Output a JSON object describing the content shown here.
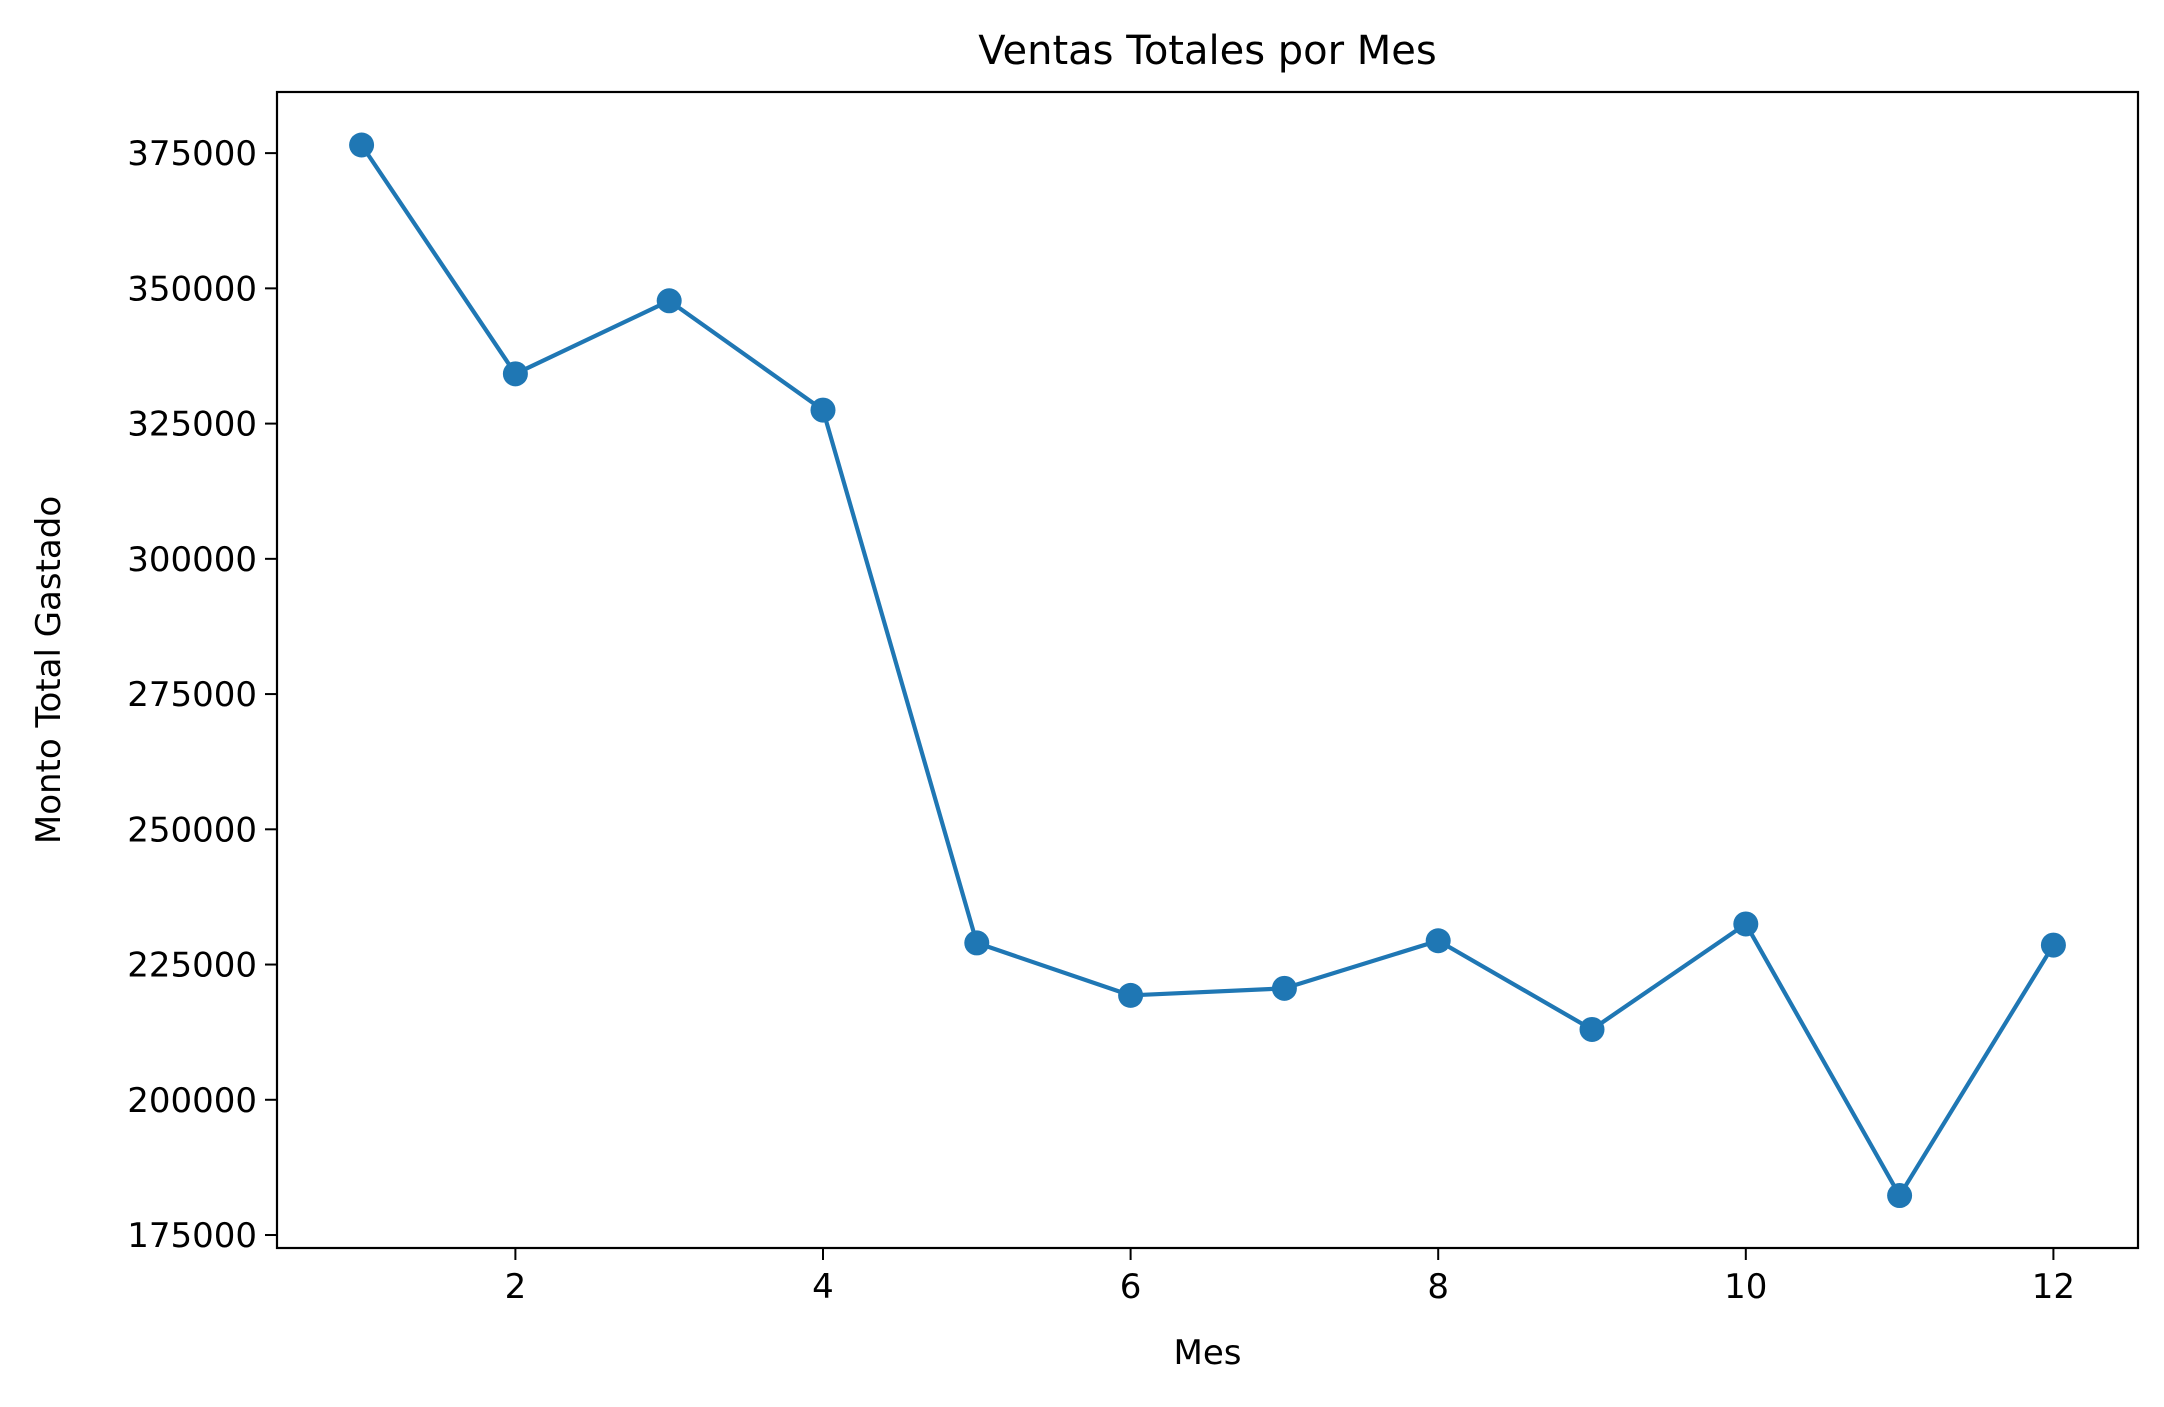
{
  "chart_data": {
    "type": "line",
    "title": "Ventas Totales por Mes",
    "xlabel": "Mes",
    "ylabel": "Monto Total Gastado",
    "x": [
      1,
      2,
      3,
      4,
      5,
      6,
      7,
      8,
      9,
      10,
      11,
      12
    ],
    "series": [
      {
        "values": [
          376500,
          334200,
          347700,
          327500,
          229000,
          219300,
          220600,
          229400,
          213000,
          232500,
          182300,
          228600
        ],
        "color": "#1f77b4",
        "marker": "circle"
      }
    ],
    "xlim": [
      0.45,
      12.55
    ],
    "ylim": [
      172600,
      386300
    ],
    "xticks": [
      2,
      4,
      6,
      8,
      10,
      12
    ],
    "xtick_labels": [
      "2",
      "4",
      "6",
      "8",
      "10",
      "12"
    ],
    "yticks": [
      175000,
      200000,
      225000,
      250000,
      275000,
      300000,
      325000,
      350000,
      375000
    ],
    "ytick_labels": [
      "175000",
      "200000",
      "225000",
      "250000",
      "275000",
      "300000",
      "325000",
      "350000",
      "375000"
    ],
    "grid": false,
    "legend": "none"
  }
}
